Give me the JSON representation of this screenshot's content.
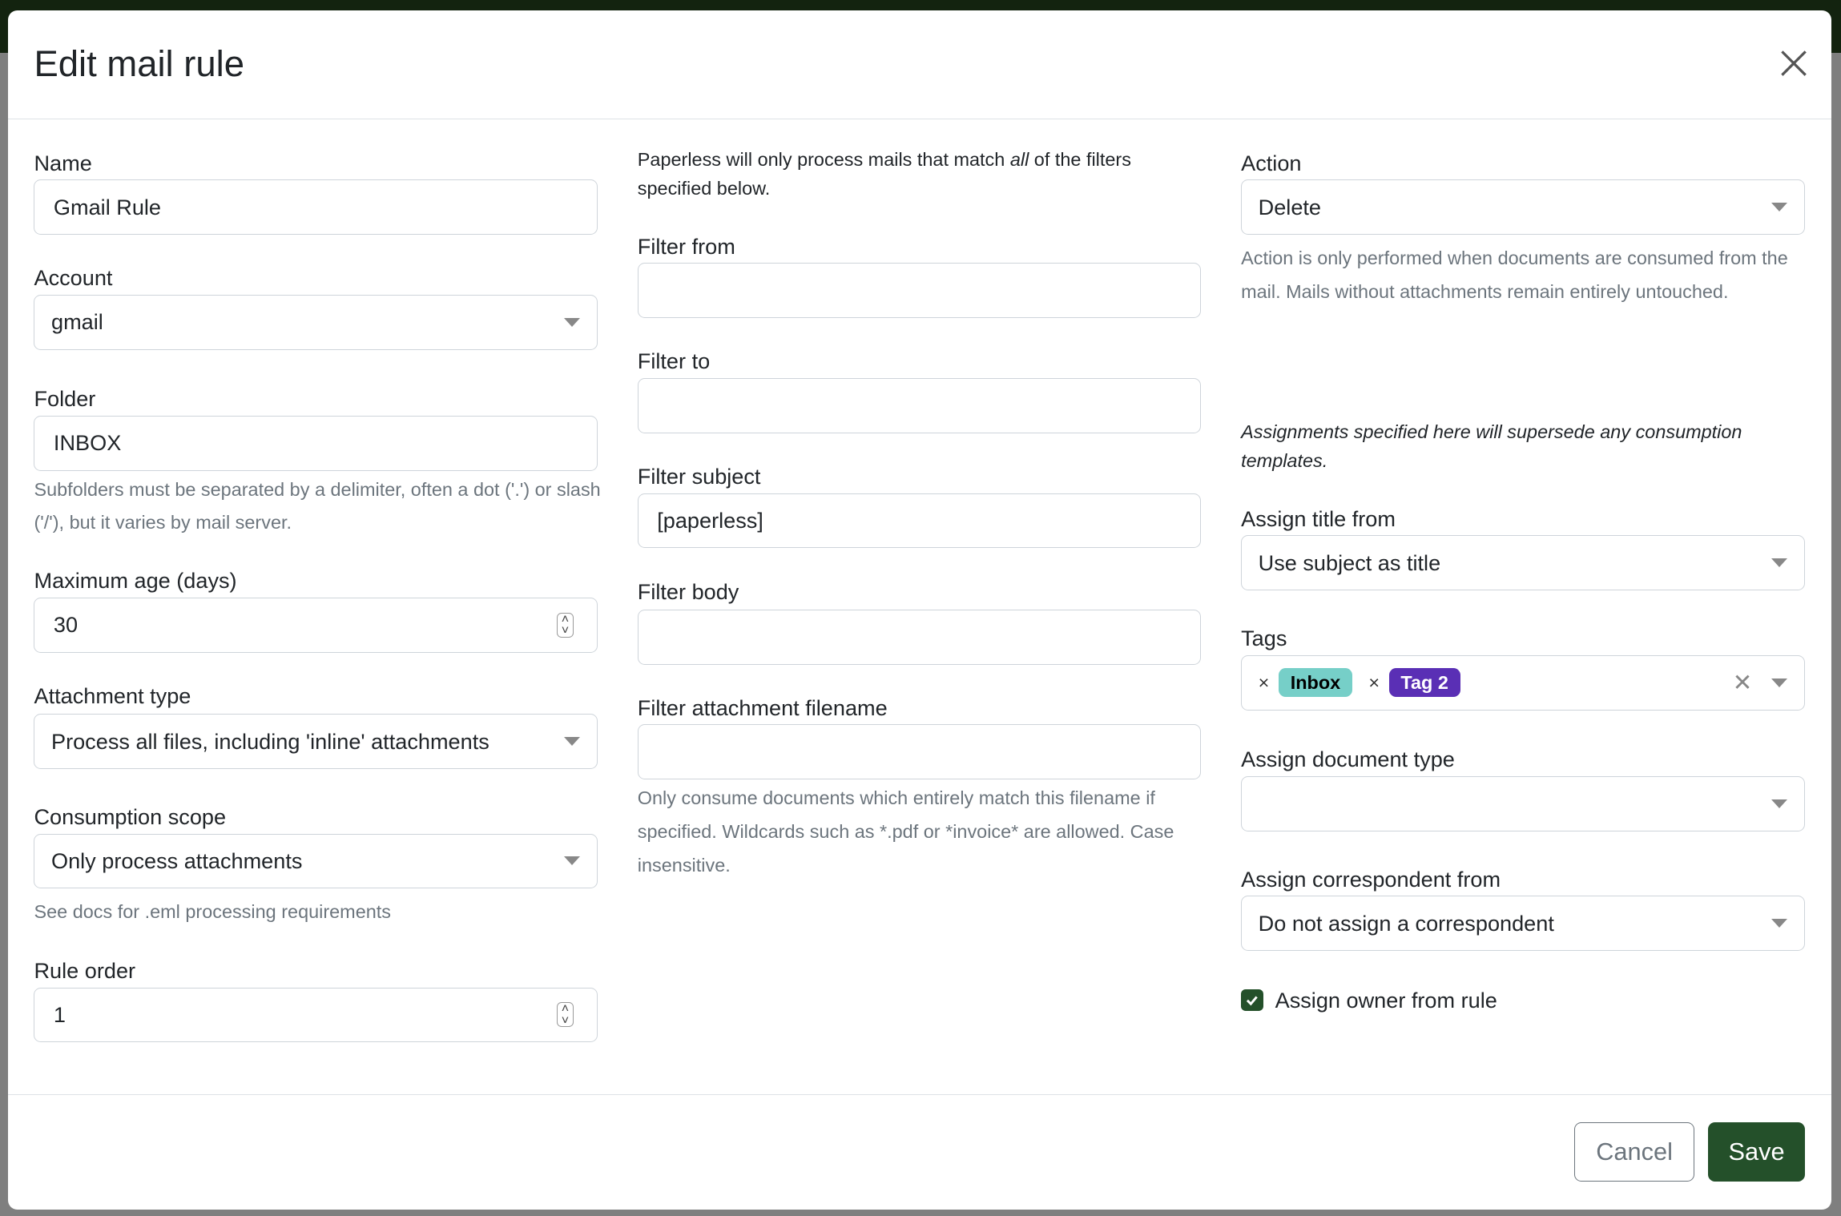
{
  "modal": {
    "title": "Edit mail rule"
  },
  "col1": {
    "name": {
      "label": "Name",
      "value": "Gmail Rule"
    },
    "account": {
      "label": "Account",
      "value": "gmail"
    },
    "folder": {
      "label": "Folder",
      "value": "INBOX",
      "help": "Subfolders must be separated by a delimiter, often a dot ('.') or slash ('/'), but it varies by mail server."
    },
    "max_age": {
      "label": "Maximum age (days)",
      "value": "30"
    },
    "attachment_type": {
      "label": "Attachment type",
      "value": "Process all files, including 'inline' attachments"
    },
    "consumption_scope": {
      "label": "Consumption scope",
      "value": "Only process attachments",
      "help": "See docs for .eml processing requirements"
    },
    "rule_order": {
      "label": "Rule order",
      "value": "1"
    }
  },
  "col2": {
    "intro_pre": "Paperless will only process mails that match ",
    "intro_em": "all",
    "intro_post": " of the filters specified below.",
    "filter_from": {
      "label": "Filter from",
      "value": ""
    },
    "filter_to": {
      "label": "Filter to",
      "value": ""
    },
    "filter_subject": {
      "label": "Filter subject",
      "value": "[paperless]"
    },
    "filter_body": {
      "label": "Filter body",
      "value": ""
    },
    "filter_attachment": {
      "label": "Filter attachment filename",
      "value": "",
      "help": "Only consume documents which entirely match this filename if specified. Wildcards such as *.pdf or *invoice* are allowed. Case insensitive."
    }
  },
  "col3": {
    "action": {
      "label": "Action",
      "value": "Delete",
      "help": "Action is only performed when documents are consumed from the mail. Mails without attachments remain entirely untouched."
    },
    "assign_note": "Assignments specified here will supersede any consumption templates.",
    "assign_title": {
      "label": "Assign title from",
      "value": "Use subject as title"
    },
    "tags": {
      "label": "Tags",
      "items": [
        {
          "label": "Inbox",
          "bg": "#76cfc8",
          "fg": "#000000"
        },
        {
          "label": "Tag 2",
          "bg": "#5a2fb5",
          "fg": "#ffffff"
        }
      ]
    },
    "doc_type": {
      "label": "Assign document type",
      "value": ""
    },
    "correspondent": {
      "label": "Assign correspondent from",
      "value": "Do not assign a correspondent"
    },
    "owner": {
      "label": "Assign owner from rule",
      "checked": true
    }
  },
  "footer": {
    "cancel": "Cancel",
    "save": "Save"
  },
  "colors": {
    "accent": "#24502a"
  }
}
